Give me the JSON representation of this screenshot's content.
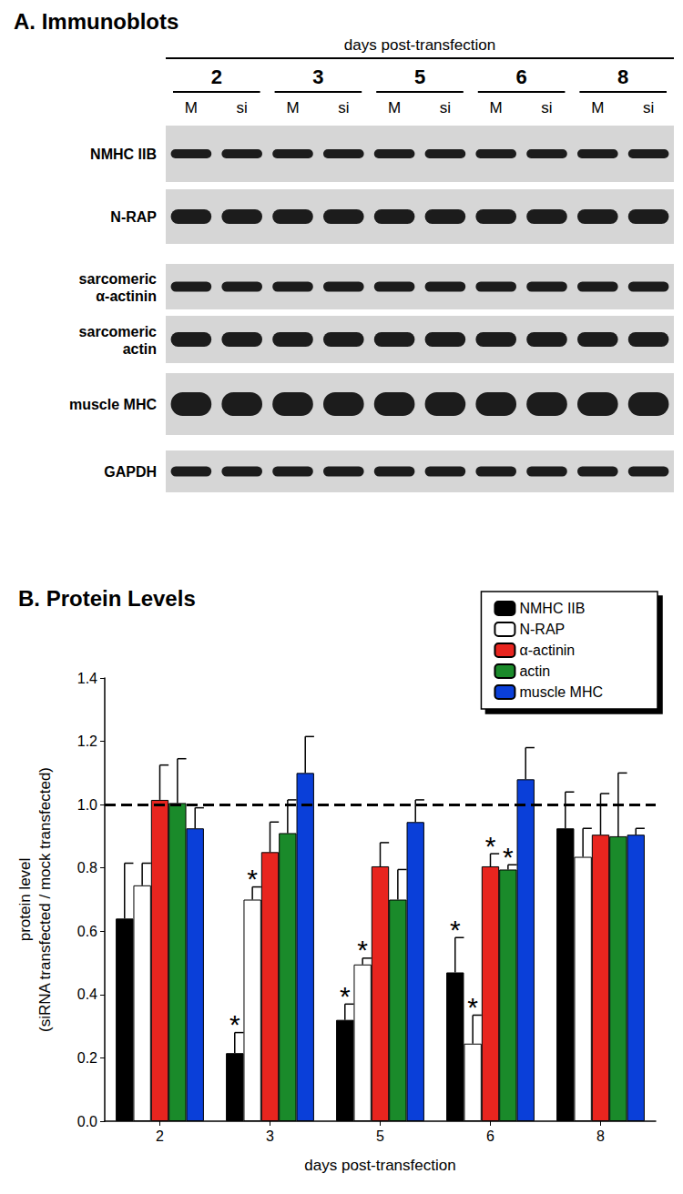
{
  "panel_a": {
    "title": "A. Immunoblots",
    "header": "days post-transfection",
    "days": [
      "2",
      "3",
      "5",
      "6",
      "8"
    ],
    "lanes": [
      "M",
      "si"
    ],
    "rows": [
      "NMHC IIB",
      "N-RAP",
      "sarcomeric α-actinin",
      "sarcomeric actin",
      "muscle MHC",
      "GAPDH"
    ]
  },
  "chart_data": {
    "type": "bar",
    "title": "B. Protein Levels",
    "x_label": "days post-transfection",
    "y_label": "protein level\n(siRNA transfected / mock transfected)",
    "categories": [
      "2",
      "3",
      "5",
      "6",
      "8"
    ],
    "ylim": [
      0,
      1.4
    ],
    "yticks": [
      {
        "value": 0,
        "label": "0.0"
      },
      {
        "value": 0.2,
        "label": "0.2"
      },
      {
        "value": 0.4,
        "label": "0.4"
      },
      {
        "value": 0.6,
        "label": "0.6"
      },
      {
        "value": 0.8,
        "label": "0.8"
      },
      {
        "value": 1.0,
        "label": "1.0"
      },
      {
        "value": 1.2,
        "label": "1.2"
      },
      {
        "value": 1.4,
        "label": "1.4"
      }
    ],
    "grid": false,
    "legend": "upper right",
    "reference_line": {
      "value": 1.0,
      "line_style": "dashed"
    },
    "series": [
      {
        "name": "NMHC IIB",
        "color": "#000000",
        "values": [
          0.64,
          0.215,
          0.32,
          0.47,
          0.925
        ],
        "errors": [
          0.175,
          0.065,
          0.05,
          0.11,
          0.115
        ],
        "annotations": [
          null,
          "*",
          "*",
          "*",
          null
        ]
      },
      {
        "name": "N-RAP",
        "color": "#ffffff",
        "values": [
          0.745,
          0.7,
          0.495,
          0.245,
          0.835
        ],
        "errors": [
          0.07,
          0.04,
          0.02,
          0.09,
          0.09
        ],
        "annotations": [
          null,
          "*",
          "*",
          "*",
          null
        ]
      },
      {
        "name": "α-actinin",
        "color": "#e8251f",
        "values": [
          1.015,
          0.85,
          0.805,
          0.805,
          0.905
        ],
        "errors": [
          0.11,
          0.095,
          0.075,
          0.04,
          0.13
        ],
        "annotations": [
          null,
          null,
          null,
          "*",
          null
        ]
      },
      {
        "name": "actin",
        "color": "#1a8a2a",
        "values": [
          1.005,
          0.91,
          0.7,
          0.795,
          0.9
        ],
        "errors": [
          0.14,
          0.105,
          0.095,
          0.015,
          0.2
        ],
        "annotations": [
          null,
          null,
          null,
          "*",
          null
        ]
      },
      {
        "name": "muscle MHC",
        "color": "#0a3fd9",
        "values": [
          0.925,
          1.1,
          0.945,
          1.08,
          0.905
        ],
        "errors": [
          0.065,
          0.115,
          0.07,
          0.1,
          0.02
        ],
        "annotations": [
          null,
          null,
          null,
          null,
          null
        ]
      }
    ]
  }
}
